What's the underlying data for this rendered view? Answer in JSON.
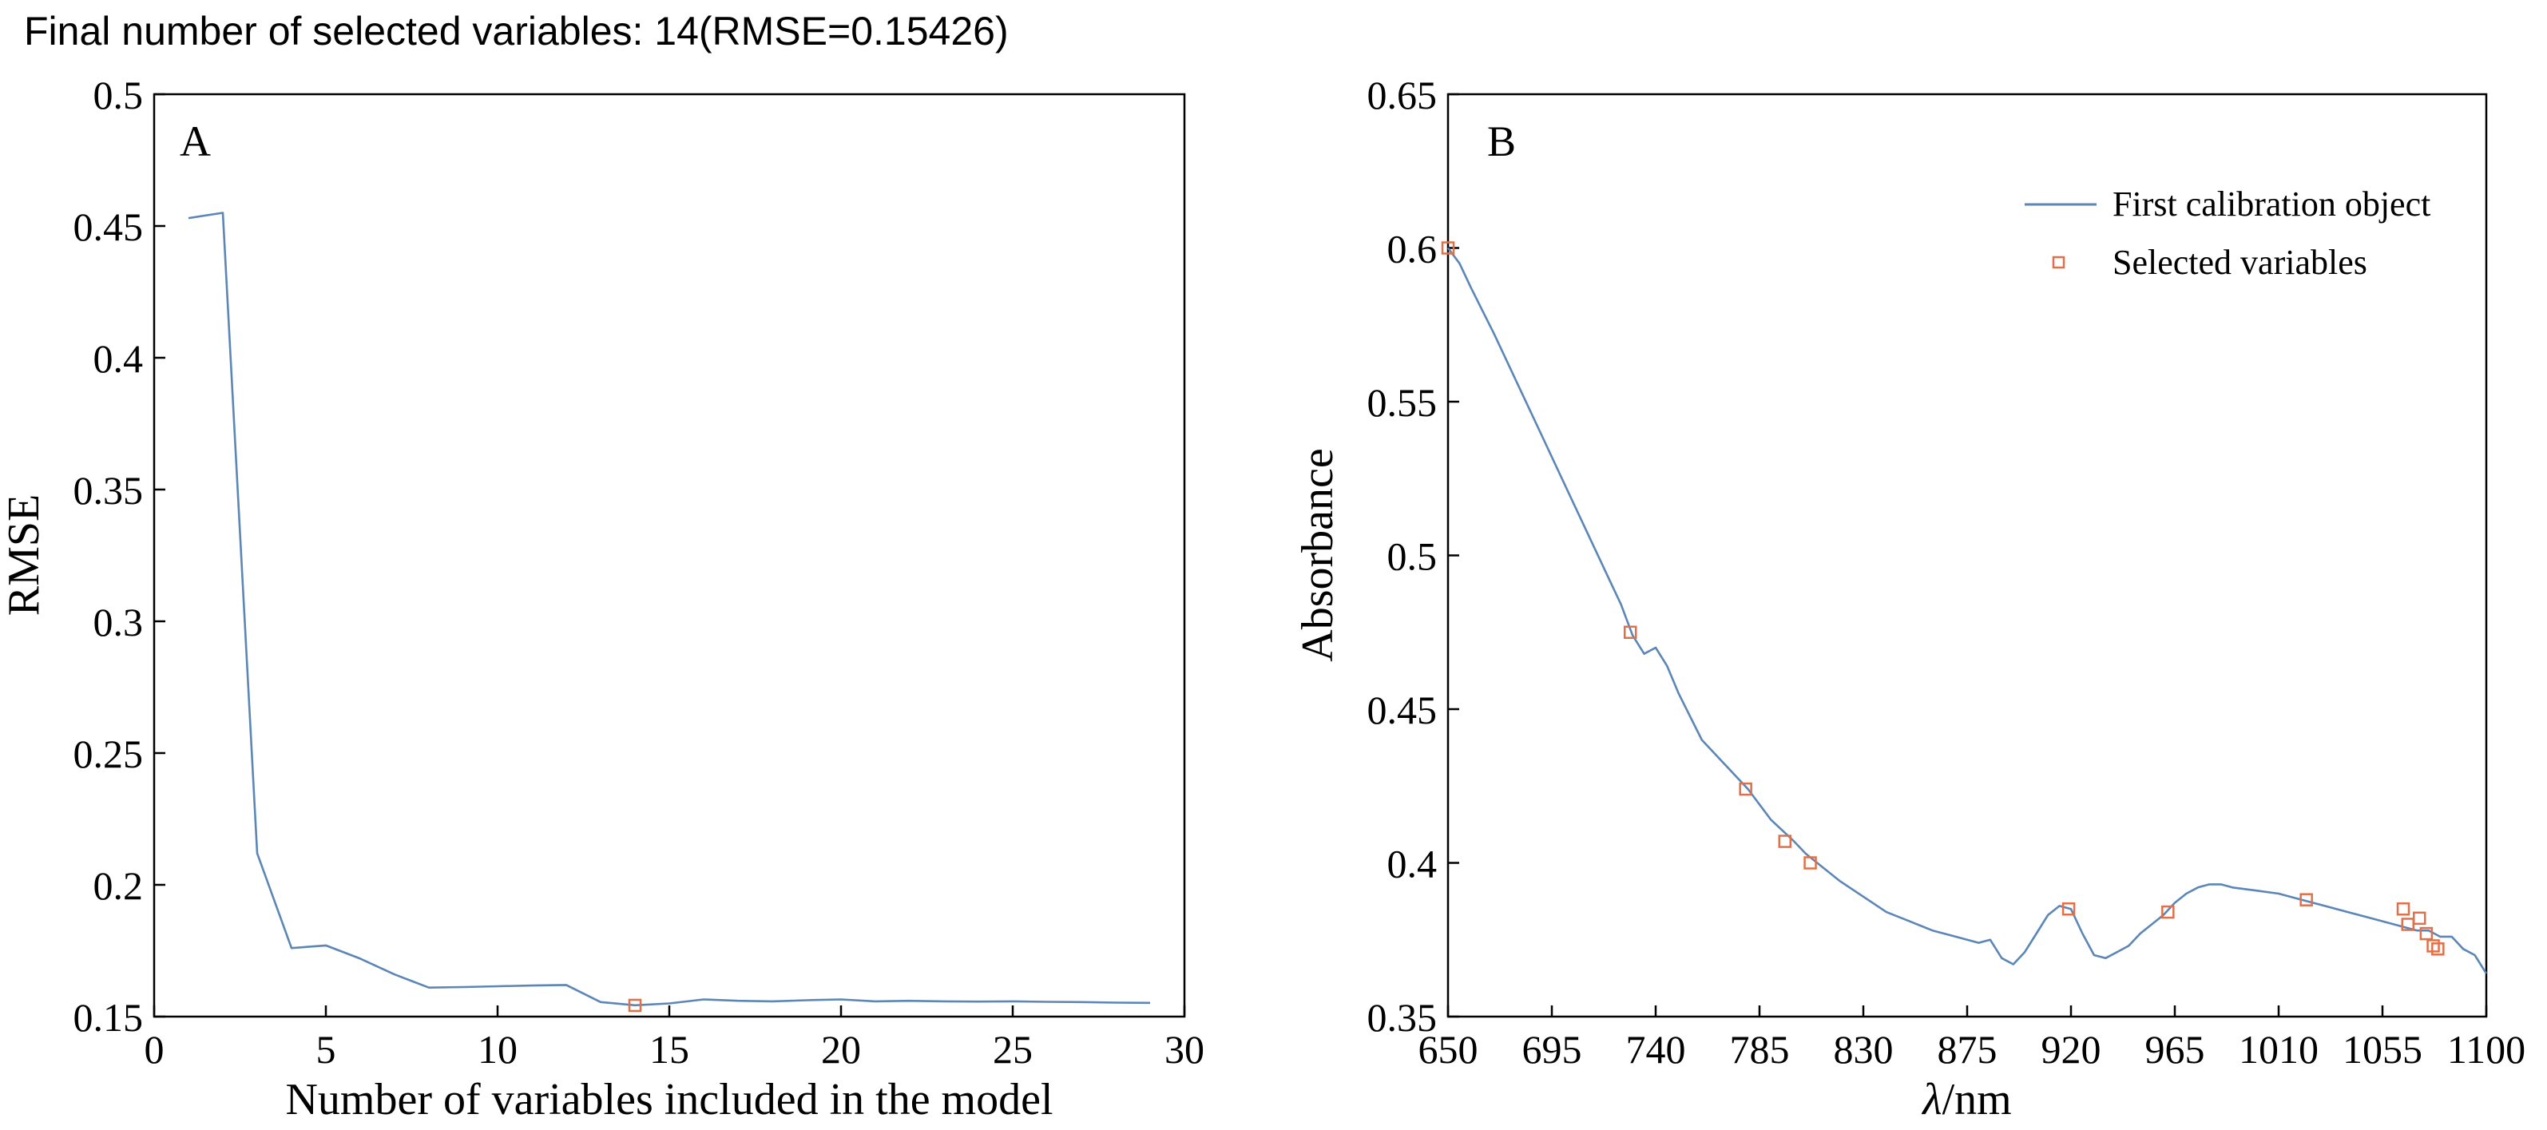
{
  "suptitle": "Final number of selected variables: 14(RMSE=0.15426)",
  "colors": {
    "line": "#5b86b5",
    "marker": "#e0704a",
    "axis": "#000000"
  },
  "chart_data": [
    {
      "type": "line",
      "panel_label": "A",
      "xlabel": "Number of variables included in the model",
      "ylabel": "RMSE",
      "xlim": [
        0,
        30
      ],
      "ylim": [
        0.15,
        0.5
      ],
      "xticks": [
        0,
        5,
        10,
        15,
        20,
        25,
        30
      ],
      "yticks": [
        0.15,
        0.2,
        0.25,
        0.3,
        0.35,
        0.4,
        0.45,
        0.5
      ],
      "xtick_labels": [
        "0",
        "5",
        "10",
        "15",
        "20",
        "25",
        "30"
      ],
      "ytick_labels": [
        "0.15",
        "0.2",
        "0.25",
        "0.3",
        "0.35",
        "0.4",
        "0.45",
        "0.5"
      ],
      "grid": false,
      "series": [
        {
          "type": "line",
          "x": [
            1,
            2,
            3,
            4,
            5,
            6,
            7,
            8,
            9,
            10,
            11,
            12,
            13,
            14,
            15,
            16,
            17,
            18,
            19,
            20,
            21,
            22,
            23,
            24,
            25,
            26,
            27,
            28,
            29
          ],
          "y": [
            0.453,
            0.455,
            0.212,
            0.176,
            0.177,
            0.172,
            0.166,
            0.161,
            0.1612,
            0.1615,
            0.1618,
            0.162,
            0.1555,
            0.1543,
            0.155,
            0.1565,
            0.156,
            0.1558,
            0.1562,
            0.1565,
            0.1558,
            0.156,
            0.1558,
            0.1557,
            0.1558,
            0.1556,
            0.1555,
            0.1553,
            0.1552
          ]
        },
        {
          "type": "scatter",
          "x": [
            14
          ],
          "y": [
            0.15426
          ]
        }
      ]
    },
    {
      "type": "line",
      "panel_label": "B",
      "xlabel_italic": "λ",
      "xlabel_rest": "/nm",
      "ylabel": "Absorbance",
      "xlim": [
        650,
        1100
      ],
      "ylim": [
        0.35,
        0.65
      ],
      "xticks": [
        650,
        695,
        740,
        785,
        830,
        875,
        920,
        965,
        1010,
        1055,
        1100
      ],
      "yticks": [
        0.35,
        0.4,
        0.45,
        0.5,
        0.55,
        0.6,
        0.65
      ],
      "xtick_labels": [
        "650",
        "695",
        "740",
        "785",
        "830",
        "875",
        "920",
        "965",
        "1010",
        "1055",
        "1100"
      ],
      "ytick_labels": [
        "0.35",
        "0.4",
        "0.45",
        "0.5",
        "0.55",
        "0.6",
        "0.65"
      ],
      "grid": false,
      "legend_position": "top-right",
      "series": [
        {
          "name": "First calibration object",
          "type": "line",
          "x": [
            650,
            655,
            660,
            670,
            680,
            690,
            700,
            710,
            720,
            725,
            730,
            735,
            740,
            745,
            750,
            760,
            770,
            780,
            790,
            800,
            805,
            810,
            820,
            830,
            840,
            850,
            860,
            870,
            880,
            885,
            890,
            895,
            900,
            905,
            910,
            915,
            920,
            925,
            930,
            935,
            940,
            945,
            950,
            955,
            960,
            965,
            970,
            975,
            980,
            985,
            990,
            1000,
            1010,
            1020,
            1030,
            1040,
            1050,
            1060,
            1070,
            1075,
            1080,
            1085,
            1090,
            1095,
            1100
          ],
          "y": [
            0.6,
            0.595,
            0.587,
            0.572,
            0.556,
            0.54,
            0.524,
            0.508,
            0.492,
            0.484,
            0.474,
            0.468,
            0.47,
            0.464,
            0.455,
            0.44,
            0.432,
            0.424,
            0.414,
            0.407,
            0.403,
            0.4,
            0.394,
            0.389,
            0.384,
            0.381,
            0.378,
            0.376,
            0.374,
            0.375,
            0.369,
            0.367,
            0.371,
            0.377,
            0.383,
            0.386,
            0.385,
            0.377,
            0.37,
            0.369,
            0.371,
            0.373,
            0.377,
            0.38,
            0.383,
            0.387,
            0.39,
            0.392,
            0.393,
            0.393,
            0.392,
            0.391,
            0.39,
            0.388,
            0.386,
            0.384,
            0.382,
            0.38,
            0.378,
            0.378,
            0.376,
            0.376,
            0.372,
            0.37,
            0.364
          ]
        },
        {
          "name": "Selected variables",
          "type": "scatter",
          "x": [
            650,
            729,
            779,
            796,
            807,
            919,
            962,
            1022,
            1064,
            1066,
            1071,
            1074,
            1077,
            1079
          ],
          "y": [
            0.6,
            0.475,
            0.424,
            0.407,
            0.4,
            0.385,
            0.384,
            0.388,
            0.385,
            0.38,
            0.382,
            0.377,
            0.373,
            0.372
          ]
        }
      ]
    }
  ]
}
